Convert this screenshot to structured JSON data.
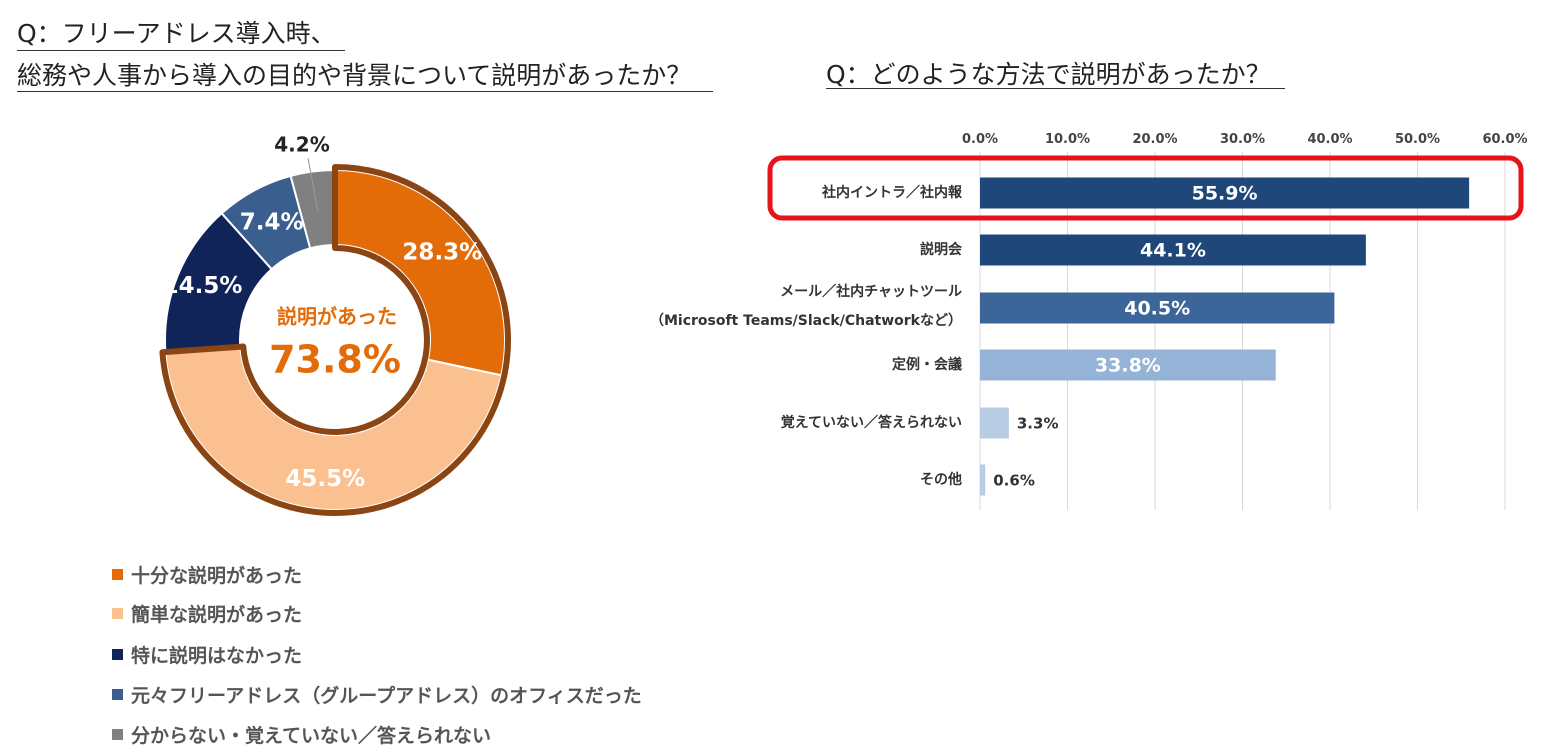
{
  "left_question": {
    "line1": "Q：フリーアドレス導入時、",
    "line2": "総務や人事から導入の目的や背景について説明があったか？"
  },
  "right_question": {
    "text": "Q：どのような方法で説明があったか？"
  },
  "colors": {
    "orange": "#E36C09",
    "light_orange": "#FAC090",
    "dark_navy": "#10245A",
    "steel_blue": "#3A5F8F",
    "gray": "#808080",
    "highlight_outline": "#8B4513",
    "center_text": "#E36C09",
    "bar_dark": "#1F477A",
    "bar_mid": "#3C6699",
    "bar_light": "#95B3D7",
    "bar_pale": "#B8CCE4",
    "highlight_box": "#E8131A"
  },
  "chart_data": [
    {
      "type": "pie",
      "title": "Q：フリーアドレス導入時、総務や人事から導入の目的や背景について説明があったか？",
      "center_label": "説明があった",
      "center_value": "73.8%",
      "categories": [
        "十分な説明があった",
        "簡単な説明があった",
        "特に説明はなかった",
        "元々フリーアドレス（グループアドレス）のオフィスだった",
        "分からない・覚えていない／答えられない"
      ],
      "values": [
        28.3,
        45.5,
        14.5,
        7.4,
        4.2
      ],
      "labels": [
        "28.3%",
        "45.5%",
        "14.5%",
        "7.4%",
        "4.2%"
      ],
      "highlighted": [
        "十分な説明があった",
        "簡単な説明があった"
      ],
      "legend_position": "bottom-left"
    },
    {
      "type": "bar",
      "orientation": "horizontal",
      "title": "Q：どのような方法で説明があったか？",
      "categories": [
        "社内イントラ／社内報",
        "説明会",
        "メール／社内チャットツール",
        "定例・会議",
        "覚えていない／答えられない",
        "その他"
      ],
      "category_sublabels": [
        "",
        "",
        "（Microsoft Teams/Slack/Chatworkなど）",
        "",
        "",
        ""
      ],
      "values": [
        55.9,
        44.1,
        40.5,
        33.8,
        3.3,
        0.6
      ],
      "labels": [
        "55.9%",
        "44.1%",
        "40.5%",
        "33.8%",
        "3.3%",
        "0.6%"
      ],
      "xlim": [
        0,
        60
      ],
      "xticks": [
        "0.0%",
        "10.0%",
        "20.0%",
        "30.0%",
        "40.0%",
        "50.0%",
        "60.0%"
      ],
      "grid": true,
      "highlighted": "社内イントラ／社内報"
    }
  ]
}
